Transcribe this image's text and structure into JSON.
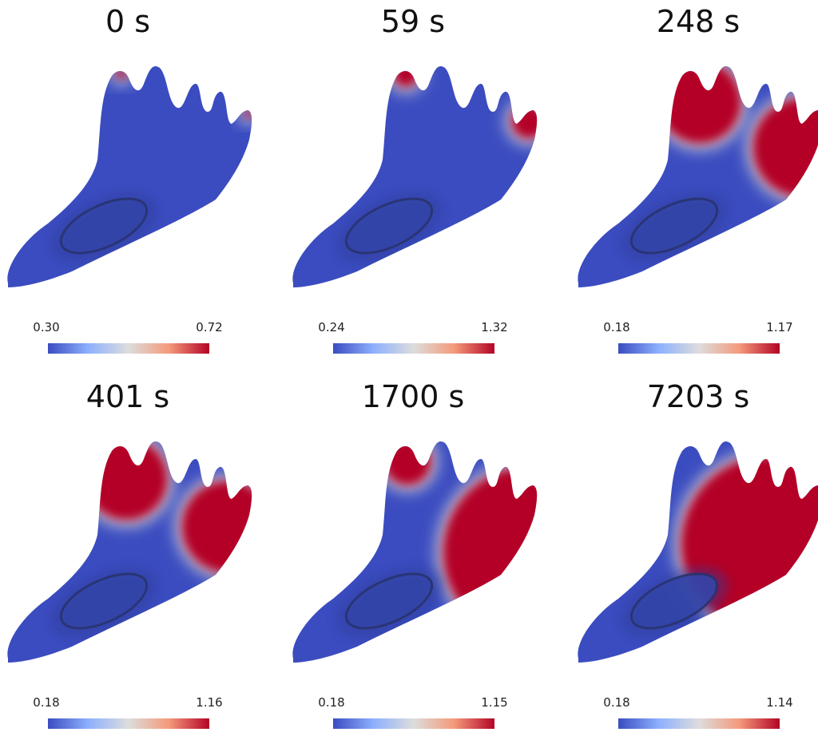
{
  "panels": [
    {
      "title": "0 s",
      "colorbar": {
        "min": "0.30",
        "max": "0.72"
      }
    },
    {
      "title": "59 s",
      "colorbar": {
        "min": "0.24",
        "max": "1.32"
      }
    },
    {
      "title": "248 s",
      "colorbar": {
        "min": "0.18",
        "max": "1.17"
      }
    },
    {
      "title": "401 s",
      "colorbar": {
        "min": "0.18",
        "max": "1.16"
      }
    },
    {
      "title": "1700 s",
      "colorbar": {
        "min": "0.18",
        "max": "1.15"
      }
    },
    {
      "title": "7203 s",
      "colorbar": {
        "min": "0.18",
        "max": "1.14"
      }
    }
  ]
}
